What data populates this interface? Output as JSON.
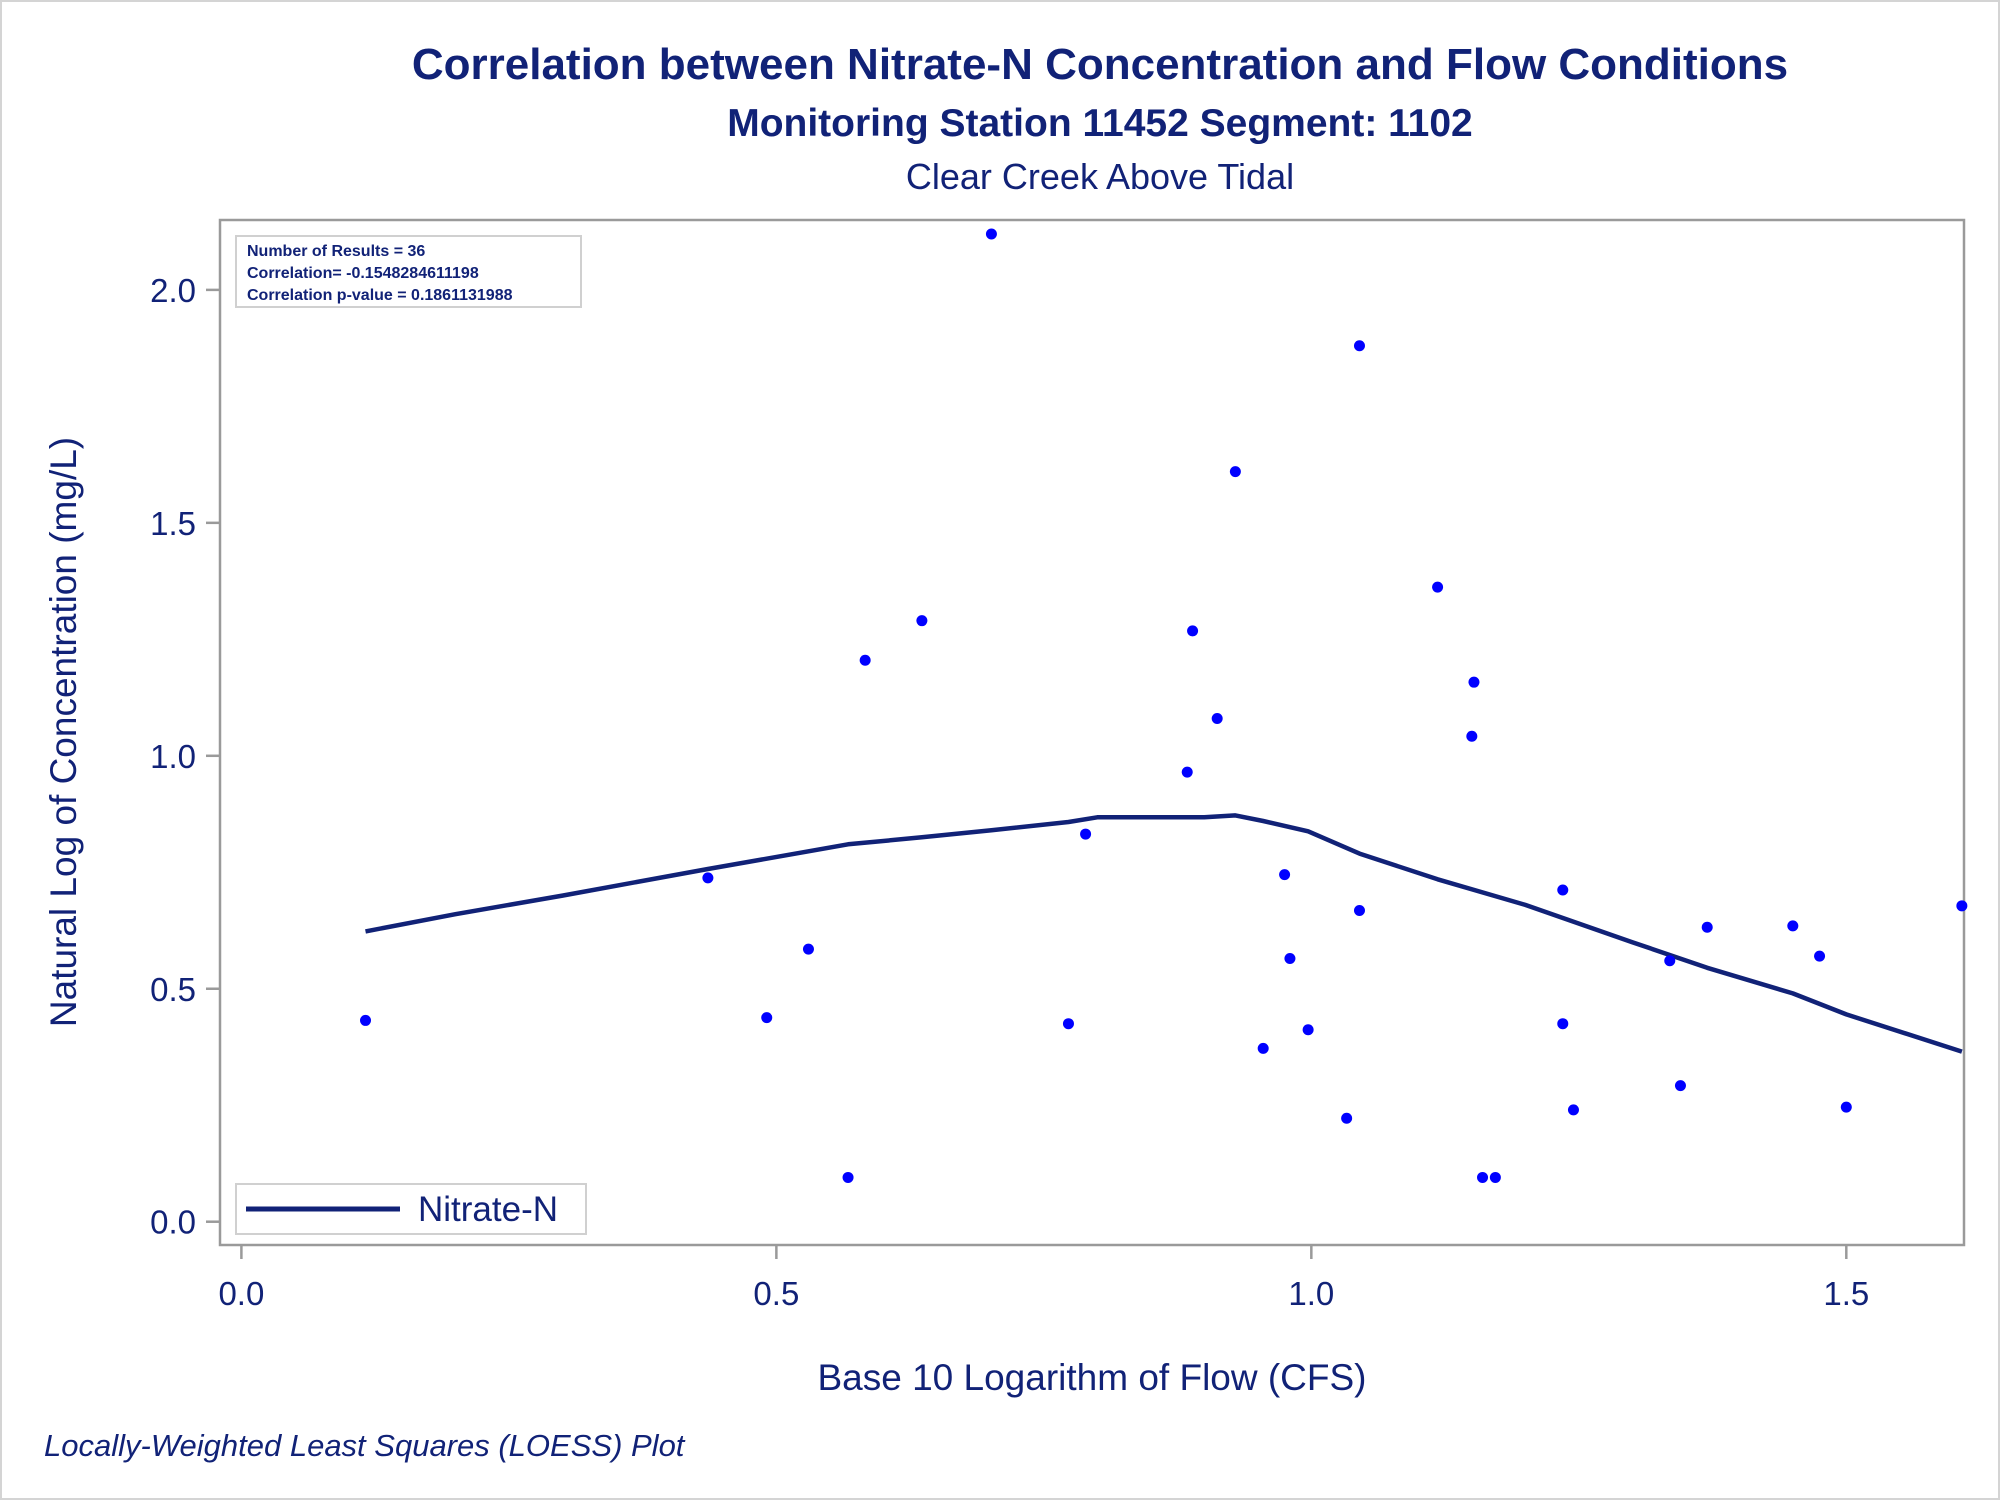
{
  "title": "Correlation between Nitrate-N Concentration and Flow Conditions",
  "subtitle": "Monitoring Station 11452 Segment: 1102",
  "subtitle2": "Clear Creek Above Tidal",
  "footnote": "Locally-Weighted Least Squares (LOESS) Plot",
  "stats": {
    "line1": "Number of Results = 36",
    "line2": "Correlation= -0.1548284611198",
    "line3": "Correlation p-value = 0.1861131988"
  },
  "legend": {
    "label": "Nitrate-N"
  },
  "colors": {
    "text": "#112277",
    "points": "#0000ff",
    "line": "#112277",
    "axis": "#9a9a9a",
    "frame": "#d4d4d4"
  },
  "chart_data": {
    "type": "scatter",
    "xlabel": "Base 10 Logarithm of Flow (CFS)",
    "ylabel": "Natural Log of Concentration (mg/L)",
    "xlim": [
      -0.02,
      1.61
    ],
    "ylim": [
      -0.05,
      2.15
    ],
    "xticks": [
      0.0,
      0.5,
      1.0,
      1.5
    ],
    "xtick_labels": [
      "0.0",
      "0.5",
      "1.0",
      "1.5"
    ],
    "yticks": [
      0.0,
      0.5,
      1.0,
      1.5,
      2.0
    ],
    "ytick_labels": [
      "0.0",
      "0.5",
      "1.0",
      "1.5",
      "2.0"
    ],
    "grid": false,
    "legend_position": "bottom-left",
    "points": {
      "x": [
        0.116,
        0.436,
        0.491,
        0.53,
        0.567,
        0.583,
        0.636,
        0.701,
        0.773,
        0.789,
        0.884,
        0.889,
        0.912,
        0.929,
        0.955,
        0.975,
        0.98,
        0.997,
        1.033,
        1.045,
        1.045,
        1.118,
        1.15,
        1.152,
        1.16,
        1.172,
        1.235,
        1.235,
        1.245,
        1.335,
        1.345,
        1.37,
        1.45,
        1.475,
        1.5,
        1.608
      ],
      "y": [
        0.432,
        0.738,
        0.438,
        0.585,
        0.095,
        1.205,
        1.29,
        2.12,
        0.425,
        0.832,
        0.965,
        1.268,
        1.08,
        1.61,
        0.372,
        0.745,
        0.565,
        0.412,
        0.222,
        0.668,
        1.88,
        1.362,
        1.042,
        1.158,
        0.095,
        0.095,
        0.712,
        0.425,
        0.24,
        0.56,
        0.292,
        0.632,
        0.635,
        0.57,
        0.246,
        0.678
      ]
    },
    "series": [
      {
        "name": "Nitrate-N",
        "type": "line",
        "x": [
          0.116,
          0.2,
          0.3,
          0.436,
          0.53,
          0.567,
          0.636,
          0.701,
          0.773,
          0.8,
          0.9,
          0.929,
          0.955,
          0.997,
          1.045,
          1.118,
          1.2,
          1.3,
          1.37,
          1.45,
          1.5,
          1.608
        ],
        "y": [
          0.623,
          0.66,
          0.7,
          0.757,
          0.795,
          0.81,
          0.825,
          0.84,
          0.858,
          0.868,
          0.868,
          0.872,
          0.86,
          0.838,
          0.79,
          0.735,
          0.68,
          0.6,
          0.545,
          0.49,
          0.445,
          0.365
        ]
      }
    ]
  }
}
